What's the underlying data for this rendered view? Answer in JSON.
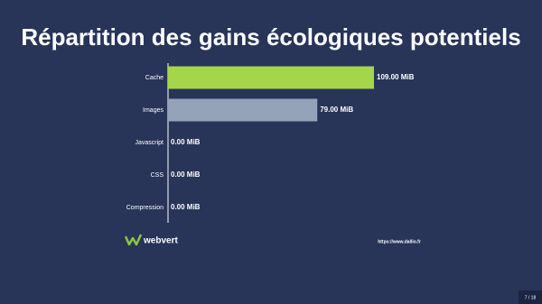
{
  "chart_data": {
    "type": "hbar",
    "title": "Répartition des gains écologiques potentiels",
    "categories": [
      "Cache",
      "Images",
      "Javascript",
      "CSS",
      "Compression"
    ],
    "values": [
      109,
      79,
      0,
      0,
      0
    ],
    "value_labels": [
      "109.00 MiB",
      "79.00 MiB",
      "0.00 MiB",
      "0.00 MiB",
      "0.00 MiB"
    ],
    "colors": [
      "#a4d54a",
      "#96a2b8",
      "#96a2b8",
      "#96a2b8",
      "#96a2b8"
    ]
  },
  "footer": {
    "brand": "webvert",
    "url": "https://www.dallio.fr",
    "page": "7 / 18"
  }
}
